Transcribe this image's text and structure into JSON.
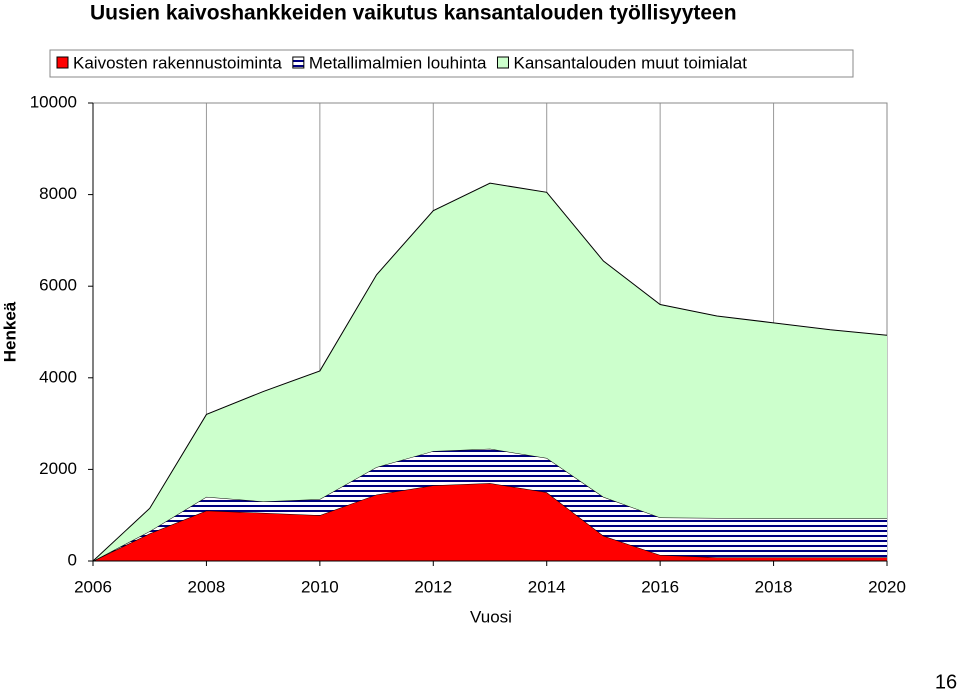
{
  "chart_data": {
    "type": "stacked_area",
    "title": "Uusien kaivoshankkeiden vaikutus kansantalouden työllisyyteen",
    "x_label": "Vuosi",
    "y_label": "Henkeä",
    "x": [
      2006,
      2007,
      2008,
      2009,
      2010,
      2011,
      2012,
      2013,
      2014,
      2015,
      2016,
      2017,
      2018,
      2019,
      2020
    ],
    "series": [
      {
        "name": "Kaivosten rakennustoiminta",
        "color": "#ff0000",
        "values": [
          0,
          600,
          1100,
          1050,
          1000,
          1450,
          1650,
          1700,
          1500,
          550,
          130,
          80,
          80,
          80,
          80
        ]
      },
      {
        "name": "Metallimalmien louhinta",
        "color": "#000080",
        "pattern": "hatch",
        "values": [
          0,
          50,
          300,
          250,
          350,
          600,
          750,
          750,
          750,
          850,
          820,
          860,
          850,
          850,
          850
        ]
      },
      {
        "name": "Kansantalouden muut toimialat",
        "color": "#ccffcc",
        "values": [
          0,
          500,
          1800,
          2400,
          2800,
          4200,
          5250,
          5800,
          5800,
          5150,
          4650,
          4410,
          4270,
          4120,
          4000
        ]
      }
    ],
    "xlim": [
      2006,
      2020
    ],
    "xticks": [
      2006,
      2008,
      2010,
      2012,
      2014,
      2016,
      2018,
      2020
    ],
    "ylim": [
      0,
      10000
    ],
    "yticks": [
      0,
      2000,
      4000,
      6000,
      8000,
      10000
    ],
    "grid": true,
    "legend": "top"
  },
  "page_number": "16"
}
